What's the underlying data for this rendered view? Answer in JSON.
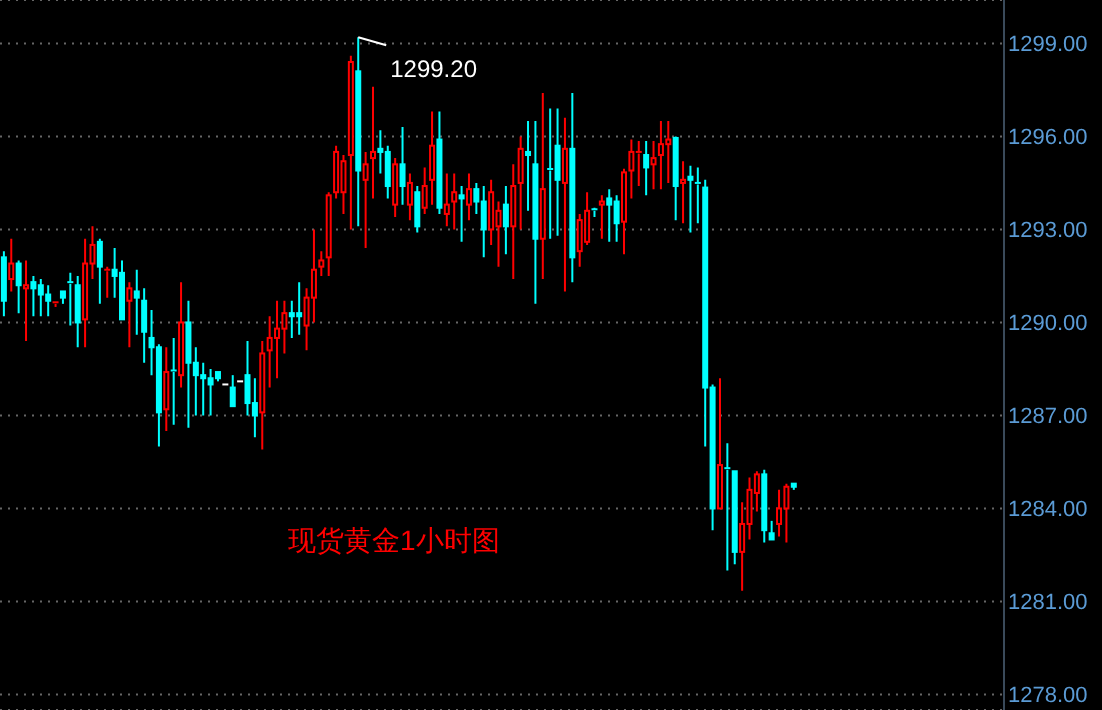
{
  "chart_data": {
    "type": "candlestick",
    "title": "现货黄金1小时图",
    "categories": [
      null,
      null,
      null,
      null,
      null,
      null,
      null,
      null,
      null,
      null,
      null,
      null,
      null,
      null,
      null,
      null,
      null,
      null,
      null,
      null,
      null,
      null,
      null,
      null,
      null,
      null,
      null,
      null,
      null,
      null,
      null,
      null,
      null,
      null,
      null,
      null,
      null,
      null,
      null,
      null,
      null,
      null,
      null,
      null,
      null,
      null,
      null,
      null,
      null,
      null,
      null,
      null,
      null,
      null,
      null,
      null,
      null,
      null,
      null,
      null,
      null,
      null,
      null,
      null,
      null,
      null,
      null,
      null,
      null,
      null,
      null,
      null,
      null,
      null,
      null,
      null,
      null,
      null,
      null,
      null,
      null,
      null,
      null,
      null,
      null,
      null,
      null,
      null,
      null,
      null,
      null,
      null,
      null,
      null,
      null,
      null,
      null,
      null,
      null,
      null,
      null,
      null,
      null,
      null,
      null,
      null,
      null,
      null,
      null,
      null,
      null,
      null,
      null,
      null,
      null,
      null,
      null,
      null,
      null,
      null,
      null,
      null,
      null,
      null,
      null,
      null,
      null,
      null,
      null,
      null,
      null,
      null,
      null,
      null,
      null,
      null
    ],
    "ohlc": [
      [
        1292.1,
        1292.3,
        1290.2,
        1290.7
      ],
      [
        1291.4,
        1292.7,
        1291.0,
        1291.9
      ],
      [
        1291.9,
        1292.0,
        1290.3,
        1291.2
      ],
      [
        1291.1,
        1292.0,
        1289.4,
        1291.2
      ],
      [
        1291.3,
        1291.5,
        1290.2,
        1291.1
      ],
      [
        1291.2,
        1291.4,
        1290.2,
        1290.9
      ],
      [
        1290.9,
        1291.2,
        1290.2,
        1290.7
      ],
      [
        1290.6,
        1290.65,
        1290.5,
        1290.65
      ],
      [
        1291.0,
        1291.0,
        1290.6,
        1290.8
      ],
      [
        1291.3,
        1291.6,
        1289.9,
        1291.25
      ],
      [
        1291.2,
        1291.5,
        1289.2,
        1290.0
      ],
      [
        1290.1,
        1292.7,
        1289.2,
        1291.9
      ],
      [
        1291.9,
        1293.1,
        1291.4,
        1292.5
      ],
      [
        1292.6,
        1292.7,
        1290.6,
        1291.8
      ],
      [
        1291.65,
        1291.8,
        1290.8,
        1291.7
      ],
      [
        1291.7,
        1292.4,
        1290.8,
        1291.5
      ],
      [
        1291.6,
        1292.0,
        1290.1,
        1290.1
      ],
      [
        1290.7,
        1291.3,
        1289.2,
        1291.1
      ],
      [
        1291.0,
        1291.7,
        1289.6,
        1290.8
      ],
      [
        1290.7,
        1291.1,
        1288.7,
        1289.7
      ],
      [
        1289.5,
        1290.4,
        1288.3,
        1289.2
      ],
      [
        1289.2,
        1289.3,
        1286.0,
        1287.1
      ],
      [
        1287.2,
        1289.2,
        1286.5,
        1288.4
      ],
      [
        1288.45,
        1289.5,
        1286.7,
        1288.4
      ],
      [
        1288.3,
        1291.3,
        1287.9,
        1290.0
      ],
      [
        1290.0,
        1290.7,
        1286.6,
        1288.7
      ],
      [
        1288.7,
        1289.2,
        1287.0,
        1288.3
      ],
      [
        1288.3,
        1288.7,
        1287.0,
        1288.2
      ],
      [
        1288.2,
        1288.5,
        1287.0,
        1288.0
      ],
      [
        1288.4,
        1288.4,
        1288.1,
        1288.2
      ],
      [
        1288.0,
        1288.0,
        1288.0,
        1288.0
      ],
      [
        1287.9,
        1288.3,
        1287.3,
        1287.3
      ],
      [
        1288.1,
        1288.1,
        1288.1,
        1288.1
      ],
      [
        1288.3,
        1289.4,
        1287.0,
        1287.4
      ],
      [
        1287.4,
        1288.2,
        1286.3,
        1287.0
      ],
      [
        1287.1,
        1289.4,
        1285.9,
        1289.0
      ],
      [
        1289.1,
        1290.2,
        1287.9,
        1289.5
      ],
      [
        1289.5,
        1290.7,
        1288.2,
        1289.8
      ],
      [
        1289.8,
        1290.7,
        1289.0,
        1290.3
      ],
      [
        1290.3,
        1290.7,
        1289.5,
        1290.2
      ],
      [
        1290.3,
        1291.3,
        1289.6,
        1290.2
      ],
      [
        1289.9,
        1291.1,
        1289.1,
        1290.8
      ],
      [
        1290.8,
        1293.0,
        1290.0,
        1291.7
      ],
      [
        1291.8,
        1292.3,
        1291.5,
        1292.0
      ],
      [
        1292.1,
        1294.2,
        1291.5,
        1294.1
      ],
      [
        1294.2,
        1295.7,
        1294.0,
        1295.5
      ],
      [
        1294.2,
        1295.4,
        1293.5,
        1295.2
      ],
      [
        1295.4,
        1298.6,
        1293.0,
        1298.4
      ],
      [
        1298.1,
        1299.2,
        1293.1,
        1294.9
      ],
      [
        1294.6,
        1295.5,
        1292.4,
        1295.1
      ],
      [
        1295.3,
        1297.6,
        1294.0,
        1295.5
      ],
      [
        1295.6,
        1296.2,
        1294.8,
        1295.5
      ],
      [
        1295.5,
        1295.7,
        1294.0,
        1294.4
      ],
      [
        1293.8,
        1295.3,
        1293.4,
        1295.1
      ],
      [
        1295.1,
        1296.3,
        1293.8,
        1294.4
      ],
      [
        1293.8,
        1294.8,
        1293.3,
        1294.5
      ],
      [
        1294.2,
        1294.4,
        1292.9,
        1293.1
      ],
      [
        1293.7,
        1295.0,
        1293.5,
        1294.4
      ],
      [
        1294.6,
        1296.8,
        1293.8,
        1295.7
      ],
      [
        1295.9,
        1296.8,
        1293.5,
        1293.7
      ],
      [
        1293.5,
        1294.8,
        1293.1,
        1293.8
      ],
      [
        1293.9,
        1294.8,
        1293.0,
        1294.2
      ],
      [
        1294.1,
        1294.4,
        1292.6,
        1294.0
      ],
      [
        1293.8,
        1294.8,
        1293.3,
        1294.3
      ],
      [
        1294.3,
        1294.5,
        1293.5,
        1293.9
      ],
      [
        1293.9,
        1294.4,
        1292.1,
        1293.0
      ],
      [
        1293.0,
        1294.6,
        1292.5,
        1294.2
      ],
      [
        1293.1,
        1293.9,
        1291.8,
        1293.6
      ],
      [
        1293.8,
        1294.4,
        1292.2,
        1293.1
      ],
      [
        1293.1,
        1295.1,
        1291.4,
        1294.4
      ],
      [
        1294.5,
        1296.0,
        1293.0,
        1295.6
      ],
      [
        1295.5,
        1296.5,
        1293.6,
        1295.4
      ],
      [
        1295.1,
        1296.5,
        1290.6,
        1292.7
      ],
      [
        1292.7,
        1297.4,
        1291.4,
        1294.3
      ],
      [
        1294.95,
        1296.9,
        1292.7,
        1294.9
      ],
      [
        1295.7,
        1296.9,
        1292.8,
        1294.6
      ],
      [
        1294.5,
        1296.6,
        1291.0,
        1295.6
      ],
      [
        1295.6,
        1297.4,
        1291.3,
        1292.1
      ],
      [
        1292.3,
        1293.5,
        1291.8,
        1293.3
      ],
      [
        1292.6,
        1294.2,
        1292.5,
        1293.6
      ],
      [
        1293.65,
        1293.7,
        1293.4,
        1293.6
      ],
      [
        1293.8,
        1294.1,
        1292.7,
        1293.9
      ],
      [
        1294.0,
        1294.3,
        1292.6,
        1293.8
      ],
      [
        1293.9,
        1294.1,
        1292.6,
        1293.2
      ],
      [
        1293.25,
        1294.96,
        1292.2,
        1294.84
      ],
      [
        1294.9,
        1295.9,
        1294.0,
        1295.5
      ],
      [
        1295.45,
        1295.85,
        1294.4,
        1295.5
      ],
      [
        1295.4,
        1295.85,
        1294.1,
        1295.0
      ],
      [
        1295.1,
        1295.85,
        1294.3,
        1295.3
      ],
      [
        1295.4,
        1296.5,
        1294.3,
        1295.75
      ],
      [
        1295.75,
        1296.5,
        1294.5,
        1295.9
      ],
      [
        1295.95,
        1296.0,
        1293.3,
        1294.4
      ],
      [
        1294.5,
        1295.2,
        1293.2,
        1294.6
      ],
      [
        1294.7,
        1295.05,
        1292.9,
        1294.6
      ],
      [
        1294.5,
        1295.0,
        1293.2,
        1294.45
      ],
      [
        1294.35,
        1294.6,
        1286.0,
        1287.9
      ],
      [
        1287.9,
        1288.0,
        1283.3,
        1284.0
      ],
      [
        1284.0,
        1288.2,
        1284.0,
        1285.4
      ],
      [
        1285.3,
        1286.1,
        1282.0,
        1285.25
      ],
      [
        1285.2,
        1285.2,
        1282.2,
        1282.6
      ],
      [
        1282.6,
        1284.2,
        1281.35,
        1283.5
      ],
      [
        1283.5,
        1285.0,
        1283.0,
        1284.6
      ],
      [
        1284.5,
        1285.2,
        1283.9,
        1285.1
      ],
      [
        1285.1,
        1285.25,
        1282.9,
        1283.3
      ],
      [
        1283.2,
        1283.6,
        1283.0,
        1283.0
      ],
      [
        1283.5,
        1284.6,
        1283.1,
        1284.0
      ],
      [
        1284.0,
        1284.8,
        1282.9,
        1284.7
      ],
      [
        1284.8,
        1284.8,
        1284.6,
        1284.7
      ],
      null,
      null,
      null,
      null,
      null,
      null,
      null,
      null,
      null,
      null,
      null,
      null,
      null,
      null,
      null,
      null,
      null,
      null,
      null,
      null,
      null,
      null,
      null,
      null,
      null,
      null,
      null,
      null
    ],
    "colors": [
      "#00ffff",
      "#ff0000",
      "#00ffff",
      "#ff0000",
      "#00ffff",
      "#00ffff",
      "#00ffff",
      "#ff0000",
      "#00ffff",
      "#00ffff",
      "#00ffff",
      "#ff0000",
      "#ff0000",
      "#00ffff",
      "#ff0000",
      "#00ffff",
      "#00ffff",
      "#ff0000",
      "#00ffff",
      "#00ffff",
      "#00ffff",
      "#00ffff",
      "#ff0000",
      "#00ffff",
      "#ff0000",
      "#00ffff",
      "#00ffff",
      "#00ffff",
      "#00ffff",
      "#00ffff",
      "#ffffff",
      "#00ffff",
      "#ffffff",
      "#00ffff",
      "#00ffff",
      "#ff0000",
      "#ff0000",
      "#ff0000",
      "#ff0000",
      "#00ffff",
      "#00ffff",
      "#ff0000",
      "#ff0000",
      "#ff0000",
      "#ff0000",
      "#ff0000",
      "#ff0000",
      "#ff0000",
      "#00ffff",
      "#ff0000",
      "#ff0000",
      "#00ffff",
      "#00ffff",
      "#ff0000",
      "#00ffff",
      "#ff0000",
      "#00ffff",
      "#ff0000",
      "#ff0000",
      "#00ffff",
      "#ff0000",
      "#ff0000",
      "#00ffff",
      "#ff0000",
      "#00ffff",
      "#00ffff",
      "#ff0000",
      "#ff0000",
      "#00ffff",
      "#ff0000",
      "#ff0000",
      "#00ffff",
      "#00ffff",
      "#ff0000",
      "#00ffff",
      "#00ffff",
      "#ff0000",
      "#00ffff",
      "#ff0000",
      "#ff0000",
      "#00ffff",
      "#ff0000",
      "#00ffff",
      "#00ffff",
      "#ff0000",
      "#ff0000",
      "#ff0000",
      "#00ffff",
      "#ff0000",
      "#ff0000",
      "#ff0000",
      "#00ffff",
      "#ff0000",
      "#00ffff",
      "#00ffff",
      "#00ffff",
      "#00ffff",
      "#ff0000",
      "#00ffff",
      "#00ffff",
      "#ff0000",
      "#ff0000",
      "#ff0000",
      "#00ffff",
      "#00ffff",
      "#ff0000",
      "#ff0000",
      "#00ffff",
      null,
      null,
      null,
      null,
      null,
      null,
      null,
      null,
      null,
      null,
      null,
      null,
      null,
      null,
      null,
      null,
      null,
      null,
      null,
      null,
      null,
      null,
      null,
      null,
      null,
      null,
      null,
      null
    ],
    "ylim": [
      1277.5,
      1300.4
    ],
    "yticks": [
      {
        "value": 1278,
        "label": "1278.00"
      },
      {
        "value": 1281,
        "label": "1281.00"
      },
      {
        "value": 1284,
        "label": "1284.00"
      },
      {
        "value": 1287,
        "label": "1287.00"
      },
      {
        "value": 1290,
        "label": "1290.00"
      },
      {
        "value": 1293,
        "label": "1293.00"
      },
      {
        "value": 1296,
        "label": "1296.00"
      },
      {
        "value": 1299,
        "label": "1299.00"
      }
    ],
    "grid": "y",
    "legend": false,
    "tick_labels": "y",
    "annotations": [
      "1299.20"
    ]
  }
}
